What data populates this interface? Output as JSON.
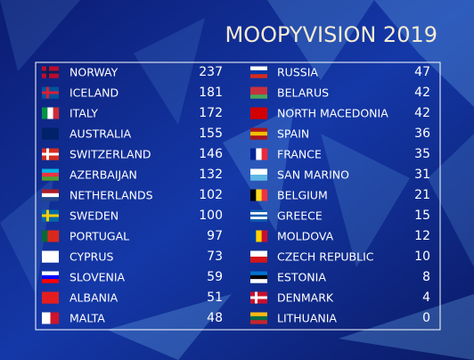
{
  "title": "MOOPYVISION 2019",
  "table": {
    "left": [
      {
        "country": "NORWAY",
        "points": 237
      },
      {
        "country": "ICELAND",
        "points": 181
      },
      {
        "country": "ITALY",
        "points": 172
      },
      {
        "country": "AUSTRALIA",
        "points": 155
      },
      {
        "country": "SWITZERLAND",
        "points": 146
      },
      {
        "country": "AZERBAIJAN",
        "points": 132
      },
      {
        "country": "NETHERLANDS",
        "points": 102
      },
      {
        "country": "SWEDEN",
        "points": 100
      },
      {
        "country": "PORTUGAL",
        "points": 97
      },
      {
        "country": "CYPRUS",
        "points": 73
      },
      {
        "country": "SLOVENIA",
        "points": 59
      },
      {
        "country": "ALBANIA",
        "points": 51
      },
      {
        "country": "MALTA",
        "points": 48
      }
    ],
    "right": [
      {
        "country": "RUSSIA",
        "points": 47
      },
      {
        "country": "BELARUS",
        "points": 42
      },
      {
        "country": "NORTH MACEDONIA",
        "points": 42
      },
      {
        "country": "SPAIN",
        "points": 36
      },
      {
        "country": "FRANCE",
        "points": 35
      },
      {
        "country": "SAN MARINO",
        "points": 31
      },
      {
        "country": "BELGIUM",
        "points": 21
      },
      {
        "country": "GREECE",
        "points": 15
      },
      {
        "country": "MOLDOVA",
        "points": 12
      },
      {
        "country": "CZECH REPUBLIC",
        "points": 10
      },
      {
        "country": "ESTONIA",
        "points": 8
      },
      {
        "country": "DENMARK",
        "points": 4
      },
      {
        "country": "LITHUANIA",
        "points": 0
      }
    ]
  }
}
